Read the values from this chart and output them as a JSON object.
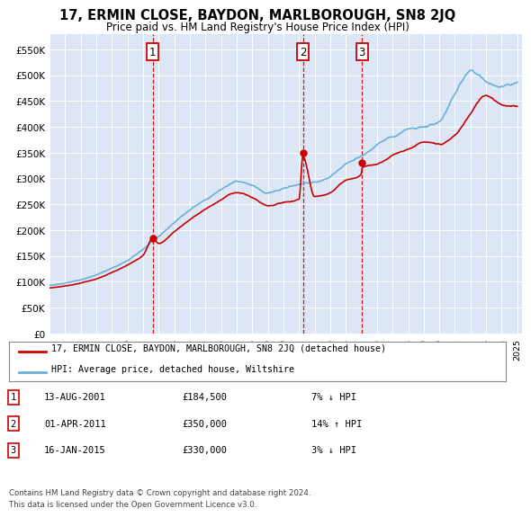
{
  "title": "17, ERMIN CLOSE, BAYDON, MARLBOROUGH, SN8 2JQ",
  "subtitle": "Price paid vs. HM Land Registry's House Price Index (HPI)",
  "background_color": "#ffffff",
  "plot_bg_color": "#dce6f5",
  "grid_color": "#ffffff",
  "ylim": [
    0,
    580000
  ],
  "yticks": [
    0,
    50000,
    100000,
    150000,
    200000,
    250000,
    300000,
    350000,
    400000,
    450000,
    500000,
    550000
  ],
  "ytick_labels": [
    "£0",
    "£50K",
    "£100K",
    "£150K",
    "£200K",
    "£250K",
    "£300K",
    "£350K",
    "£400K",
    "£450K",
    "£500K",
    "£550K"
  ],
  "sale_dates": [
    2001.617,
    2011.247,
    2015.042
  ],
  "sale_prices": [
    184500,
    350000,
    330000
  ],
  "sale_labels": [
    "1",
    "2",
    "3"
  ],
  "legend_line1": "17, ERMIN CLOSE, BAYDON, MARLBOROUGH, SN8 2JQ (detached house)",
  "legend_line2": "HPI: Average price, detached house, Wiltshire",
  "table_rows": [
    [
      "1",
      "13-AUG-2001",
      "£184,500",
      "7% ↓ HPI"
    ],
    [
      "2",
      "01-APR-2011",
      "£350,000",
      "14% ↑ HPI"
    ],
    [
      "3",
      "16-JAN-2015",
      "£330,000",
      "3% ↓ HPI"
    ]
  ],
  "footer1": "Contains HM Land Registry data © Crown copyright and database right 2024.",
  "footer2": "This data is licensed under the Open Government Licence v3.0.",
  "hpi_color": "#6ab0d8",
  "price_color": "#cc0000",
  "vline_color": "#cc0000",
  "xtick_years": [
    1995,
    1996,
    1997,
    1998,
    1999,
    2000,
    2001,
    2002,
    2003,
    2004,
    2005,
    2006,
    2007,
    2008,
    2009,
    2010,
    2011,
    2012,
    2013,
    2014,
    2015,
    2016,
    2017,
    2018,
    2019,
    2020,
    2021,
    2022,
    2023,
    2024,
    2025
  ]
}
